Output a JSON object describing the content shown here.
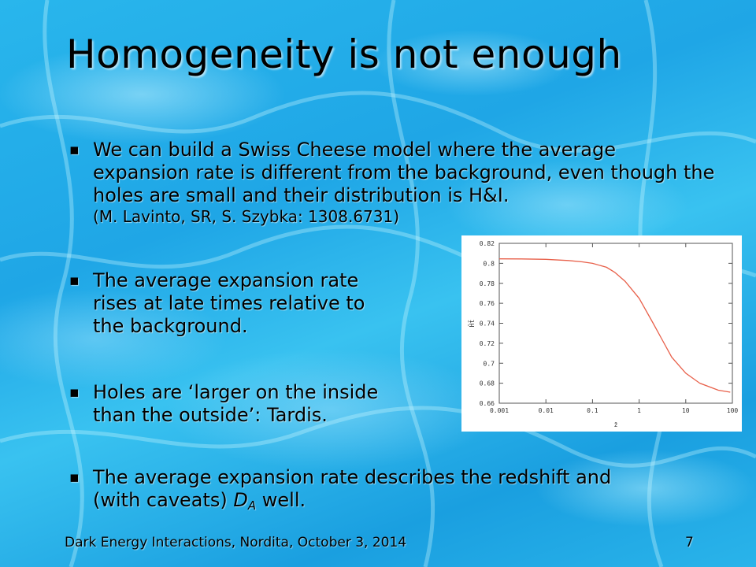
{
  "slide": {
    "title": "Homogeneity is not enough",
    "bullet_marker": "▪",
    "bullets": [
      {
        "text": "We can build a Swiss Cheese model where the average expansion rate is different from the background, even though the holes are small and their distribution is H&I.",
        "note": "(M. Lavinto, SR, S. Szybka: 1308.6731)"
      },
      {
        "line1": "The average expansion rate",
        "line2": "rises at late times relative to",
        "line3": "the background."
      },
      {
        "line1": "Holes are ‘larger on the inside",
        "line2": "than the outside’: Tardis."
      },
      {
        "line1": "The average expansion rate describes the redshift and",
        "line2_pre": "(with caveats) ",
        "line2_var": "D",
        "line2_sub": "A",
        "line2_post": " well."
      }
    ],
    "footer_left": "Dark Energy Interactions, Nordita, October 3, 2014",
    "footer_right": "7"
  },
  "chart_data": {
    "type": "line",
    "x_scale": "log",
    "xlim": [
      0.001,
      100
    ],
    "ylim": [
      0.66,
      0.82
    ],
    "x_ticks": [
      "0.001",
      "0.01",
      "0.1",
      "1",
      "10",
      "100"
    ],
    "y_ticks": [
      "0.66",
      "0.68",
      "0.7",
      "0.72",
      "0.74",
      "0.76",
      "0.78",
      "0.8",
      "0.82"
    ],
    "xlabel": "z̄",
    "ylabel": "H̄t̄",
    "series_color": "#e8604a",
    "x": [
      0.001,
      0.003,
      0.01,
      0.03,
      0.06,
      0.1,
      0.2,
      0.3,
      0.5,
      1,
      2,
      3,
      5,
      10,
      20,
      50,
      90
    ],
    "y": [
      0.8045,
      0.8044,
      0.804,
      0.8028,
      0.8015,
      0.8,
      0.796,
      0.791,
      0.782,
      0.765,
      0.74,
      0.725,
      0.706,
      0.69,
      0.68,
      0.673,
      0.671
    ]
  }
}
